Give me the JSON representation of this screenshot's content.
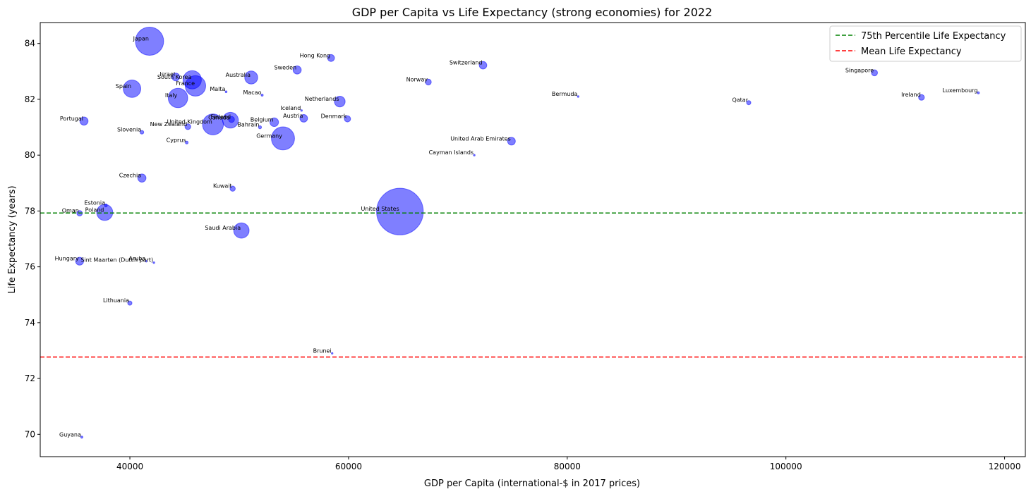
{
  "chart_data": {
    "type": "scatter",
    "title": "GDP per Capita vs Life Expectancy (strong economies) for 2022",
    "xlabel": "GDP per Capita (international-$ in 2017 prices)",
    "ylabel": "Life Expectancy (years)",
    "xlim": [
      31800,
      121900
    ],
    "ylim": [
      69.2,
      84.75
    ],
    "xticks": [
      40000,
      60000,
      80000,
      100000,
      120000
    ],
    "yticks": [
      70,
      72,
      74,
      76,
      78,
      80,
      82,
      84
    ],
    "grid": false,
    "legend_position": "top-right",
    "marker_color": "#0000ff",
    "reference_lines": [
      {
        "name": "75th Percentile Life Expectancy",
        "value": 77.93,
        "color": "#008000"
      },
      {
        "name": "Mean Life Expectancy",
        "value": 72.77,
        "color": "#ff0000"
      }
    ],
    "points": [
      {
        "label": "Japan",
        "x": 41800,
        "y": 84.08,
        "population_m": 124
      },
      {
        "label": "Hong Kong",
        "x": 58400,
        "y": 83.48,
        "population_m": 7.4
      },
      {
        "label": "Switzerland",
        "x": 72300,
        "y": 83.22,
        "population_m": 8.8
      },
      {
        "label": "Sweden",
        "x": 55300,
        "y": 83.05,
        "population_m": 10.5
      },
      {
        "label": "Singapore",
        "x": 108100,
        "y": 82.95,
        "population_m": 5.6
      },
      {
        "label": "Israel",
        "x": 44200,
        "y": 82.8,
        "population_m": 9.5
      },
      {
        "label": "Australia",
        "x": 51100,
        "y": 82.78,
        "population_m": 26
      },
      {
        "label": "South Korea",
        "x": 45700,
        "y": 82.7,
        "population_m": 51.8
      },
      {
        "label": "Norway",
        "x": 67300,
        "y": 82.62,
        "population_m": 5.4
      },
      {
        "label": "France",
        "x": 46000,
        "y": 82.48,
        "population_m": 64.6
      },
      {
        "label": "Spain",
        "x": 40200,
        "y": 82.38,
        "population_m": 47.5
      },
      {
        "label": "Malta",
        "x": 48800,
        "y": 82.27,
        "population_m": 0.53
      },
      {
        "label": "Luxembourg",
        "x": 117600,
        "y": 82.23,
        "population_m": 0.65
      },
      {
        "label": "Macao",
        "x": 52100,
        "y": 82.15,
        "population_m": 0.69
      },
      {
        "label": "Bermuda",
        "x": 81000,
        "y": 82.1,
        "population_m": 0.06
      },
      {
        "label": "Ireland",
        "x": 112400,
        "y": 82.07,
        "population_m": 5.1
      },
      {
        "label": "Italy",
        "x": 44400,
        "y": 82.05,
        "population_m": 59
      },
      {
        "label": "Netherlands",
        "x": 59200,
        "y": 81.92,
        "population_m": 17.6
      },
      {
        "label": "Qatar",
        "x": 96600,
        "y": 81.88,
        "population_m": 2.7
      },
      {
        "label": "Iceland",
        "x": 55700,
        "y": 81.6,
        "population_m": 0.38
      },
      {
        "label": "Austria",
        "x": 55900,
        "y": 81.32,
        "population_m": 9
      },
      {
        "label": "Denmark",
        "x": 59900,
        "y": 81.3,
        "population_m": 5.9
      },
      {
        "label": "Finland",
        "x": 49300,
        "y": 81.28,
        "population_m": 5.5
      },
      {
        "label": "Canada",
        "x": 49200,
        "y": 81.25,
        "population_m": 38.5
      },
      {
        "label": "Portugal",
        "x": 35800,
        "y": 81.22,
        "population_m": 10.3
      },
      {
        "label": "Belgium",
        "x": 53200,
        "y": 81.18,
        "population_m": 11.6
      },
      {
        "label": "United Kingdom",
        "x": 47600,
        "y": 81.1,
        "population_m": 67.5
      },
      {
        "label": "New Zealand",
        "x": 45300,
        "y": 81.02,
        "population_m": 5.1
      },
      {
        "label": "Bahrain",
        "x": 51900,
        "y": 81.0,
        "population_m": 1.5
      },
      {
        "label": "Slovenia",
        "x": 41100,
        "y": 80.82,
        "population_m": 2.1
      },
      {
        "label": "Germany",
        "x": 54000,
        "y": 80.6,
        "population_m": 83.4
      },
      {
        "label": "United Arab Emirates",
        "x": 74900,
        "y": 80.5,
        "population_m": 9.4
      },
      {
        "label": "Cyprus",
        "x": 45200,
        "y": 80.45,
        "population_m": 1.25
      },
      {
        "label": "Cayman Islands",
        "x": 71500,
        "y": 80.0,
        "population_m": 0.07
      },
      {
        "label": "Czechia",
        "x": 41100,
        "y": 79.18,
        "population_m": 10.5
      },
      {
        "label": "Kuwait",
        "x": 49400,
        "y": 78.8,
        "population_m": 4.3
      },
      {
        "label": "Estonia",
        "x": 37800,
        "y": 78.2,
        "population_m": 1.3
      },
      {
        "label": "United States",
        "x": 64700,
        "y": 77.98,
        "population_m": 338
      },
      {
        "label": "Poland",
        "x": 37700,
        "y": 77.95,
        "population_m": 39.9
      },
      {
        "label": "Oman",
        "x": 35400,
        "y": 77.92,
        "population_m": 4.6
      },
      {
        "label": "Saudi Arabia",
        "x": 50200,
        "y": 77.3,
        "population_m": 36.4
      },
      {
        "label": "Hungary",
        "x": 35400,
        "y": 76.2,
        "population_m": 9.7
      },
      {
        "label": "Aruba",
        "x": 41500,
        "y": 76.2,
        "population_m": 0.1
      },
      {
        "label": "Sint Maarten (Dutch part)",
        "x": 42200,
        "y": 76.15,
        "population_m": 0.04
      },
      {
        "label": "Lithuania",
        "x": 40000,
        "y": 74.7,
        "population_m": 2.8
      },
      {
        "label": "Brunei",
        "x": 58500,
        "y": 72.9,
        "population_m": 0.45
      },
      {
        "label": "Guyana",
        "x": 35600,
        "y": 69.9,
        "population_m": 0.8
      }
    ]
  }
}
